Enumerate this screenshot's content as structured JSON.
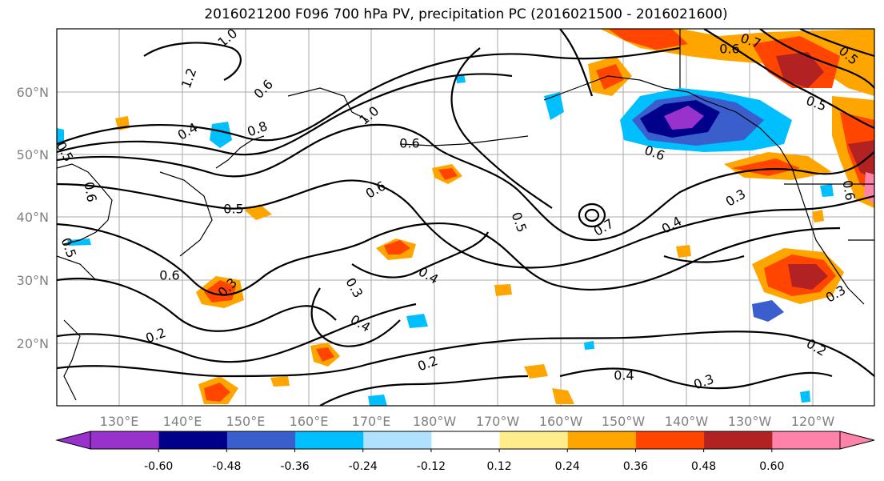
{
  "title": "2016021200 F096 700 hPa PV, precipitation PC (2016021500 - 2016021600)",
  "map": {
    "lon_ticks": [
      "130°E",
      "140°E",
      "150°E",
      "160°E",
      "170°E",
      "180°W",
      "170°W",
      "160°W",
      "150°W",
      "140°W",
      "130°W",
      "120°W"
    ],
    "lat_ticks": [
      "60°N",
      "50°N",
      "40°N",
      "30°N",
      "20°N"
    ],
    "gridlines": true,
    "contour_labels": [
      "1.0",
      "1.2",
      "0.4",
      "0.5",
      "0.6",
      "0.8",
      "1.0",
      "0.6",
      "0.6",
      "0.5",
      "0.6",
      "0.3",
      "0.2",
      "0.3",
      "0.4",
      "0.4",
      "0.5",
      "0.7",
      "0.4",
      "0.3",
      "0.2",
      "0.4",
      "0.3",
      "0.2",
      "0.7",
      "0.6",
      "0.5",
      "0.5",
      "0.6",
      "0.3",
      "0.6",
      "0.5",
      "0.6"
    ]
  },
  "colorbar": {
    "tick_labels": [
      "-0.60",
      "-0.48",
      "-0.36",
      "-0.24",
      "-0.12",
      "0.12",
      "0.24",
      "0.36",
      "0.48",
      "0.60"
    ],
    "colors": [
      "#9932cc",
      "#00008b",
      "#3a5fcd",
      "#00bfff",
      "#b0e2ff",
      "#ffffff",
      "#ffec8b",
      "#ffa500",
      "#ff4500",
      "#b22222",
      "#ff82ab"
    ]
  }
}
